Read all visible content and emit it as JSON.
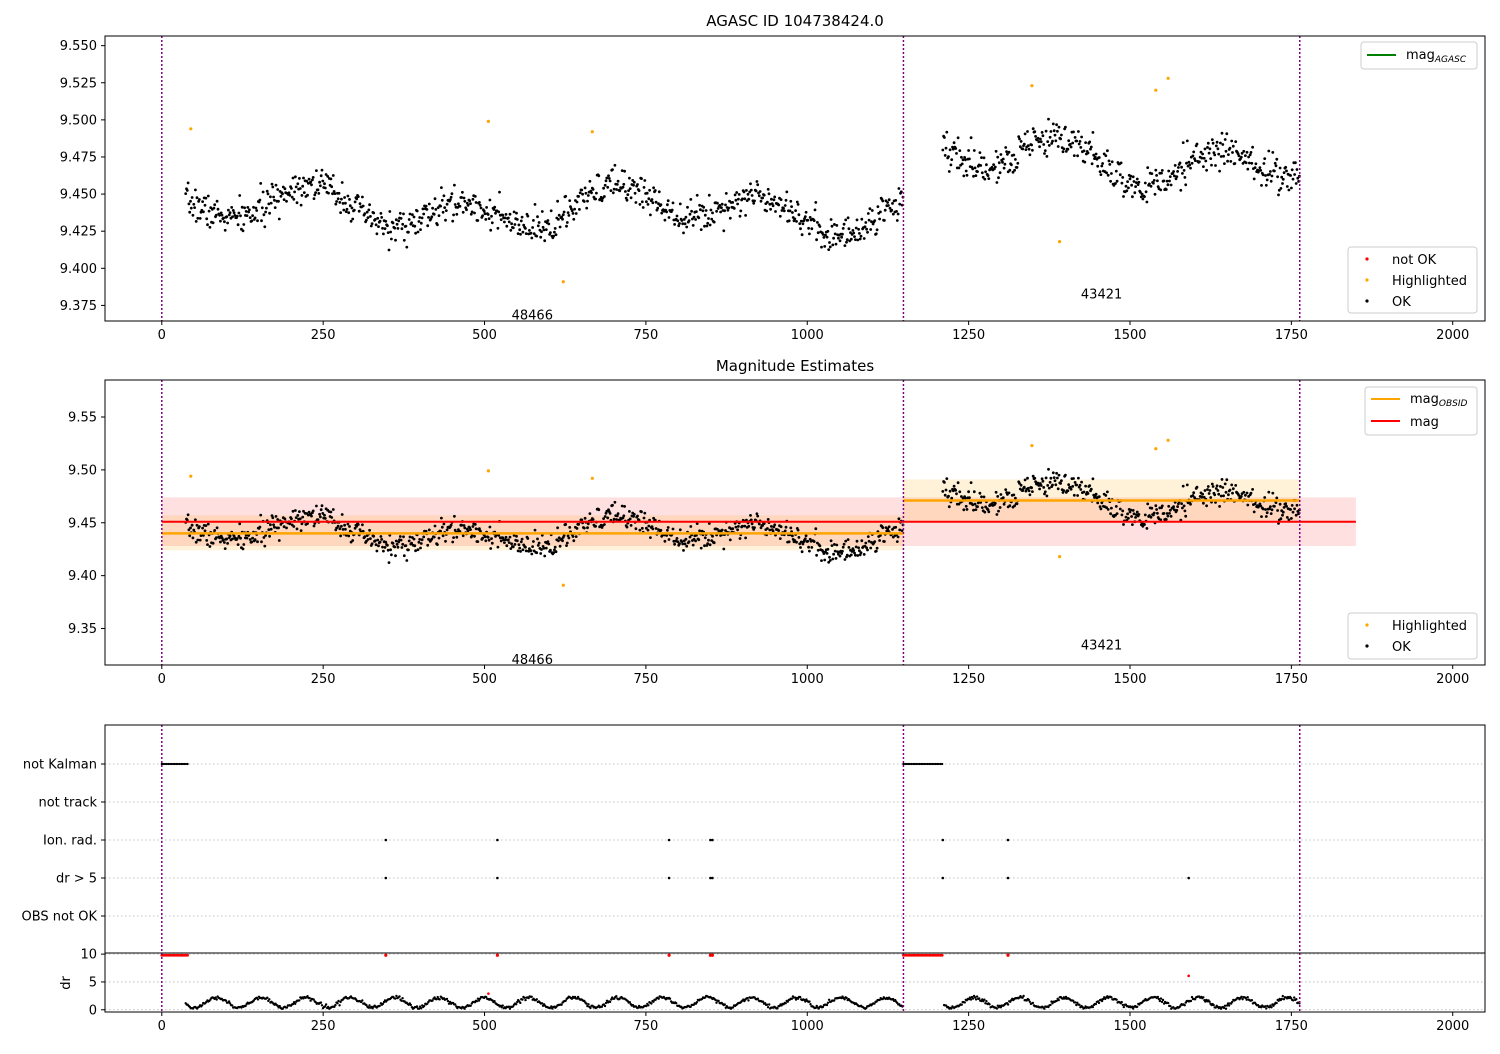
{
  "chart_data": [
    {
      "type": "scatter",
      "title": "AGASC ID 104738424.0",
      "xlim": [
        -88,
        2050
      ],
      "ylim": [
        9.3645,
        9.5565
      ],
      "x_ticks": [
        0,
        250,
        500,
        750,
        1000,
        1250,
        1500,
        1750,
        2000
      ],
      "y_ticks": [
        "9.375",
        "9.400",
        "9.425",
        "9.450",
        "9.475",
        "9.500",
        "9.525",
        "9.550"
      ],
      "obs_boundaries": [
        0,
        1149,
        1763
      ],
      "obsid_labels": [
        {
          "text": "48466",
          "x": 574,
          "y": 9.369
        },
        {
          "text": "43421",
          "x": 1456,
          "y": 9.383
        }
      ],
      "legend_lines": [
        {
          "name": "mag_AGASC",
          "base": "mag",
          "sub": "AGASC",
          "color": "#008000"
        }
      ],
      "legend_markers": [
        {
          "name": "not OK",
          "color": "#ff0000"
        },
        {
          "name": "Highlighted",
          "color": "#ffa500"
        },
        {
          "name": "OK",
          "color": "#000000"
        }
      ],
      "segments": [
        {
          "x0": 37,
          "x1": 1149,
          "mean": 9.44,
          "amp": 0.018,
          "noise": 0.01,
          "seed": 7
        },
        {
          "x0": 1210,
          "x1": 1763,
          "mean": 9.473,
          "amp": 0.02,
          "noise": 0.011,
          "seed": 19
        }
      ],
      "highlighted": [
        [
          45,
          9.494
        ],
        [
          506,
          9.499
        ],
        [
          622,
          9.391
        ],
        [
          667,
          9.492
        ],
        [
          1348,
          9.523
        ],
        [
          1391,
          9.418
        ],
        [
          1540,
          9.52
        ],
        [
          1559,
          9.528
        ]
      ],
      "colors": {
        "ok": "#000000",
        "highlighted": "#ffa500",
        "not_ok": "#ff0000",
        "boundary": "#800080"
      }
    },
    {
      "type": "scatter",
      "title": "Magnitude Estimates",
      "xlim": [
        -88,
        2050
      ],
      "ylim": [
        9.3155,
        9.585
      ],
      "x_ticks": [
        0,
        250,
        500,
        750,
        1000,
        1250,
        1500,
        1750,
        2000
      ],
      "y_ticks": [
        "9.35",
        "9.40",
        "9.45",
        "9.50",
        "9.55"
      ],
      "obs_boundaries": [
        0,
        1149,
        1763
      ],
      "obsid_labels": [
        {
          "text": "48466",
          "x": 574,
          "y": 9.321
        },
        {
          "text": "43421",
          "x": 1456,
          "y": 9.335
        }
      ],
      "legend_lines": [
        {
          "name": "mag_OBSID",
          "base": "mag",
          "sub": "OBSID",
          "color": "#ffa500"
        },
        {
          "name": "mag",
          "base": "mag",
          "sub": "",
          "color": "#ff0000"
        }
      ],
      "legend_markers": [
        {
          "name": "Highlighted",
          "color": "#ffa500"
        },
        {
          "name": "OK",
          "color": "#000000"
        }
      ],
      "mag": {
        "value": 9.451,
        "band": [
          9.428,
          9.474
        ],
        "x_range": [
          0,
          1850
        ],
        "color": "#ff0000"
      },
      "mag_obsid": [
        {
          "x0": 0,
          "x1": 1149,
          "value": 9.44,
          "band": [
            9.424,
            9.457
          ]
        },
        {
          "x0": 1149,
          "x1": 1763,
          "value": 9.471,
          "band": [
            9.452,
            9.491
          ]
        }
      ],
      "highlighted": [
        [
          45,
          9.494
        ],
        [
          506,
          9.499
        ],
        [
          622,
          9.391
        ],
        [
          667,
          9.492
        ],
        [
          1348,
          9.523
        ],
        [
          1391,
          9.418
        ],
        [
          1540,
          9.52
        ],
        [
          1559,
          9.528
        ]
      ],
      "colors": {
        "ok": "#000000",
        "highlighted": "#ffa500",
        "boundary": "#800080"
      }
    },
    {
      "type": "scatter",
      "title": "",
      "xlim": [
        -88,
        2050
      ],
      "x_ticks": [
        0,
        250,
        500,
        750,
        1000,
        1250,
        1500,
        1750,
        2000
      ],
      "flag_rows": [
        "not Kalman",
        "not track",
        "Ion. rad.",
        "dr > 5",
        "OBS not OK"
      ],
      "flags": {
        "not Kalman": [
          [
            0,
            40
          ],
          [
            1149,
            1210
          ]
        ],
        "not track": [],
        "Ion. rad.": [
          347,
          520,
          786,
          850,
          853,
          1210,
          1311
        ],
        "dr > 5": [
          347,
          520,
          786,
          850,
          853,
          1210,
          1311,
          1591
        ],
        "OBS not OK": []
      },
      "dr_ylabel": "dr",
      "dr_ticks": [
        "0",
        "5",
        "10"
      ],
      "dr_ylim": [
        -0.4,
        10.2
      ],
      "dr_high": [
        [
          0,
          40
        ],
        [
          1149,
          1210
        ]
      ],
      "dr_high_points": [
        347,
        520,
        786,
        850,
        853,
        1311
      ],
      "dr_outliers": [
        [
          506,
          2.9
        ],
        [
          1591,
          6.1
        ]
      ],
      "colors": {
        "ok": "#000000",
        "not_ok": "#ff0000",
        "boundary": "#800080"
      }
    }
  ]
}
